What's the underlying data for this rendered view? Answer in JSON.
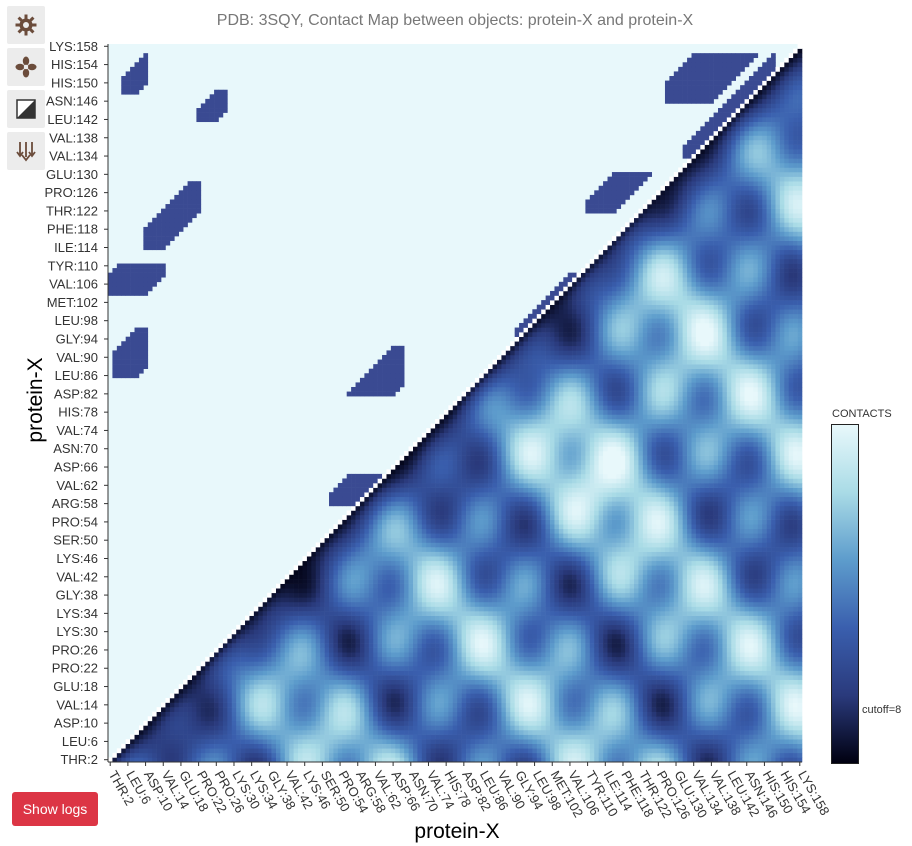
{
  "toolbar": {
    "buttons": [
      {
        "name": "settings",
        "icon": "gear-icon"
      },
      {
        "name": "flower",
        "icon": "flower-icon"
      },
      {
        "name": "contrast",
        "icon": "contrast-icon"
      },
      {
        "name": "export",
        "icon": "arrows-down-icon"
      }
    ]
  },
  "show_logs_label": "Show logs",
  "chart_data": {
    "type": "heatmap",
    "title": "PDB: 3SQY, Contact Map between objects: protein-X and protein-X",
    "xlabel": "protein-X",
    "ylabel": "protein-X",
    "residues": {
      "start": 2,
      "end": 158
    },
    "x_tick_labels": [
      "THR:2",
      "LEU:6",
      "ASP:10",
      "VAL:14",
      "GLU:18",
      "PRO:22",
      "PRO:26",
      "LYS:30",
      "LYS:34",
      "GLY:38",
      "VAL:42",
      "LYS:46",
      "SER:50",
      "PRO:54",
      "ARG:58",
      "VAL:62",
      "ASP:66",
      "ASN:70",
      "VAL:74",
      "HIS:78",
      "ASP:82",
      "LEU:86",
      "VAL:90",
      "GLY:94",
      "LEU:98",
      "MET:102",
      "VAL:106",
      "TYR:110",
      "ILE:114",
      "PHE:118",
      "THR:122",
      "PRO:126",
      "GLU:130",
      "VAL:134",
      "VAL:138",
      "LEU:142",
      "ASN:146",
      "HIS:150",
      "HIS:154",
      "LYS:158"
    ],
    "y_tick_labels": [
      "THR:2",
      "LEU:6",
      "ASP:10",
      "VAL:14",
      "GLU:18",
      "PRO:22",
      "PRO:26",
      "LYS:30",
      "LYS:34",
      "GLY:38",
      "VAL:42",
      "LYS:46",
      "SER:50",
      "PRO:54",
      "ARG:58",
      "VAL:62",
      "ASP:66",
      "ASN:70",
      "VAL:74",
      "HIS:78",
      "ASP:82",
      "LEU:86",
      "VAL:90",
      "GLY:94",
      "LEU:98",
      "MET:102",
      "VAL:106",
      "TYR:110",
      "ILE:114",
      "PHE:118",
      "THR:122",
      "PRO:126",
      "GLU:130",
      "VAL:134",
      "VAL:138",
      "LEU:142",
      "ASN:146",
      "HIS:150",
      "HIS:154",
      "LYS:158"
    ],
    "lower_triangle": "distance",
    "upper_triangle": "contacts",
    "colorscale": [
      "#000010",
      "#2a3a7c",
      "#3a5fae",
      "#5d9ccc",
      "#a9dbe6",
      "#e8f8fb"
    ],
    "contact_color": "#3a4a92",
    "background_color": "#e8f8fb",
    "diagonal_color": "#ffffff",
    "legend": {
      "title": "CONTACTS",
      "cutoff_label": "cutoff=8"
    },
    "contact_bands": [
      {
        "x": [
          2,
          40
        ],
        "y": [
          2,
          40
        ],
        "d": [
          0,
          2
        ]
      },
      {
        "x": [
          40,
          60
        ],
        "y": [
          40,
          60
        ],
        "d": [
          0,
          3
        ]
      },
      {
        "x": [
          60,
          100
        ],
        "y": [
          60,
          100
        ],
        "d": [
          0,
          3
        ]
      },
      {
        "x": [
          100,
          158
        ],
        "y": [
          100,
          158
        ],
        "d": [
          0,
          2
        ]
      },
      {
        "x": [
          14,
          24
        ],
        "y": [
          2,
          10
        ],
        "d": [
          4,
          12
        ]
      },
      {
        "x": [
          52,
          66
        ],
        "y": [
          58,
          64
        ],
        "d": [
          -8,
          0
        ]
      },
      {
        "x": [
          55,
          68
        ],
        "y": [
          82,
          92
        ],
        "d": [
          -26,
          -16
        ]
      },
      {
        "x": [
          75,
          90
        ],
        "y": [
          68,
          80
        ],
        "d": [
          0,
          14
        ]
      },
      {
        "x": [
          3,
          10
        ],
        "y": [
          86,
          96
        ],
        "d": [
          -88,
          -78
        ]
      },
      {
        "x": [
          2,
          14
        ],
        "y": [
          104,
          110
        ],
        "d": [
          -106,
          -94
        ]
      },
      {
        "x": [
          10,
          22
        ],
        "y": [
          114,
          128
        ],
        "d": [
          -108,
          -100
        ]
      },
      {
        "x": [
          94,
          108
        ],
        "y": [
          94,
          108
        ],
        "d": [
          -2,
          4
        ]
      },
      {
        "x": [
          110,
          124
        ],
        "y": [
          122,
          130
        ],
        "d": [
          -14,
          -6
        ]
      },
      {
        "x": [
          132,
          152
        ],
        "y": [
          134,
          156
        ],
        "d": [
          -4,
          2
        ]
      },
      {
        "x": [
          128,
          148
        ],
        "y": [
          146,
          156
        ],
        "d": [
          -22,
          -8
        ]
      },
      {
        "x": [
          5,
          10
        ],
        "y": [
          148,
          156
        ],
        "d": [
          -146,
          -140
        ]
      },
      {
        "x": [
          22,
          28
        ],
        "y": [
          142,
          148
        ],
        "d": [
          -122,
          -116
        ]
      }
    ]
  }
}
